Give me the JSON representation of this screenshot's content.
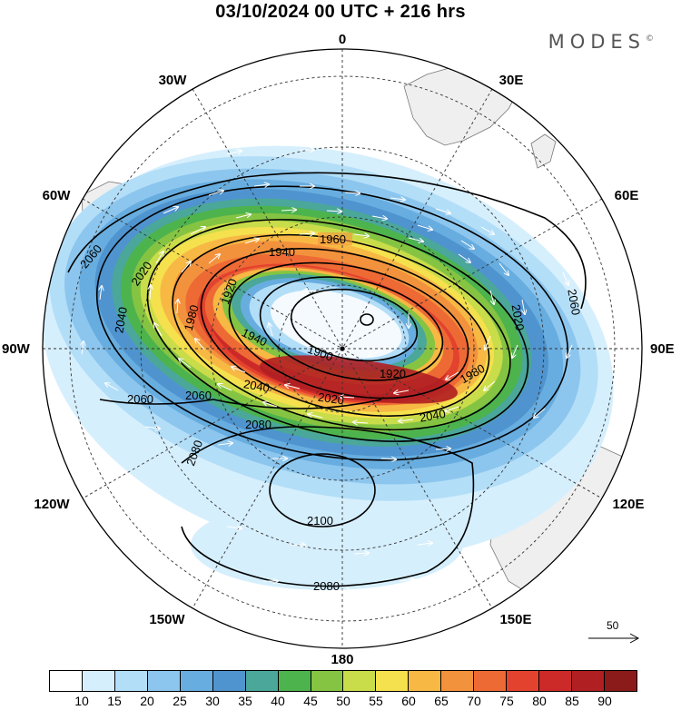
{
  "title": "03/10/2024  00 UTC  + 216 hrs",
  "brand": "MODES",
  "brand_mark": "©",
  "longitude_labels": {
    "north": "0",
    "south": "180",
    "west": "90W",
    "east": "90E",
    "lon30w": "30W",
    "lon30e": "30E",
    "lon60w": "60W",
    "lon60e": "60E",
    "lon120w": "120W",
    "lon120e": "120E",
    "lon150w": "150W",
    "lon150e": "150E"
  },
  "contour_labels": {
    "c1960": "1960",
    "c1940a": "1940",
    "c1920a": "1920",
    "c1980a": "1980",
    "c2020a": "2020",
    "c2040a": "2040",
    "c2060a": "2060",
    "c2060b": "2060",
    "c2060c": "2060",
    "c2060d": "2060",
    "c1940b": "1940",
    "c1900": "1900",
    "c1920b": "1920",
    "c1980b": "1980",
    "c2020b": "2020",
    "c2020c": "2020",
    "c2040b": "2040",
    "c2040c": "2040",
    "c2080a": "2080",
    "c2080b": "2080",
    "c2080c": "2080",
    "c2100": "2100"
  },
  "vector_reference": "50",
  "colorbar": {
    "colors": [
      "#ffffff",
      "#d6effd",
      "#b3def8",
      "#8cc6ee",
      "#68addf",
      "#4f94cf",
      "#4aa79a",
      "#4db34d",
      "#85c442",
      "#c9dc4a",
      "#f5e04d",
      "#f7b844",
      "#f3923d",
      "#ee6a35",
      "#e3432e",
      "#cc2a28",
      "#b01f22",
      "#8b1a1a"
    ],
    "labels": [
      "10",
      "15",
      "20",
      "25",
      "30",
      "35",
      "40",
      "45",
      "50",
      "55",
      "60",
      "65",
      "70",
      "75",
      "80",
      "85",
      "90"
    ]
  }
}
